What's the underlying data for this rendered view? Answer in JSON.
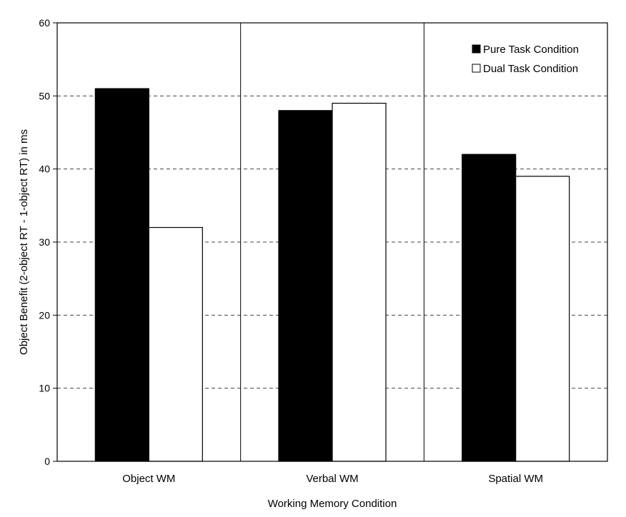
{
  "chart_data": {
    "type": "bar",
    "title": "",
    "xlabel": "Working Memory Condition",
    "ylabel": "Object Benefit (2-object RT - 1-object RT) in ms",
    "ylim": [
      0,
      60
    ],
    "yticks": [
      0,
      10,
      20,
      30,
      40,
      50,
      60
    ],
    "grid": true,
    "legend_position": "top-right",
    "categories": [
      "Object WM",
      "Verbal WM",
      "Spatial WM"
    ],
    "series": [
      {
        "name": "Pure Task Condition",
        "values": [
          51,
          48,
          42
        ],
        "color": "#000000"
      },
      {
        "name": "Dual Task Condition",
        "values": [
          32,
          49,
          39
        ],
        "color": "#ffffff"
      }
    ]
  }
}
